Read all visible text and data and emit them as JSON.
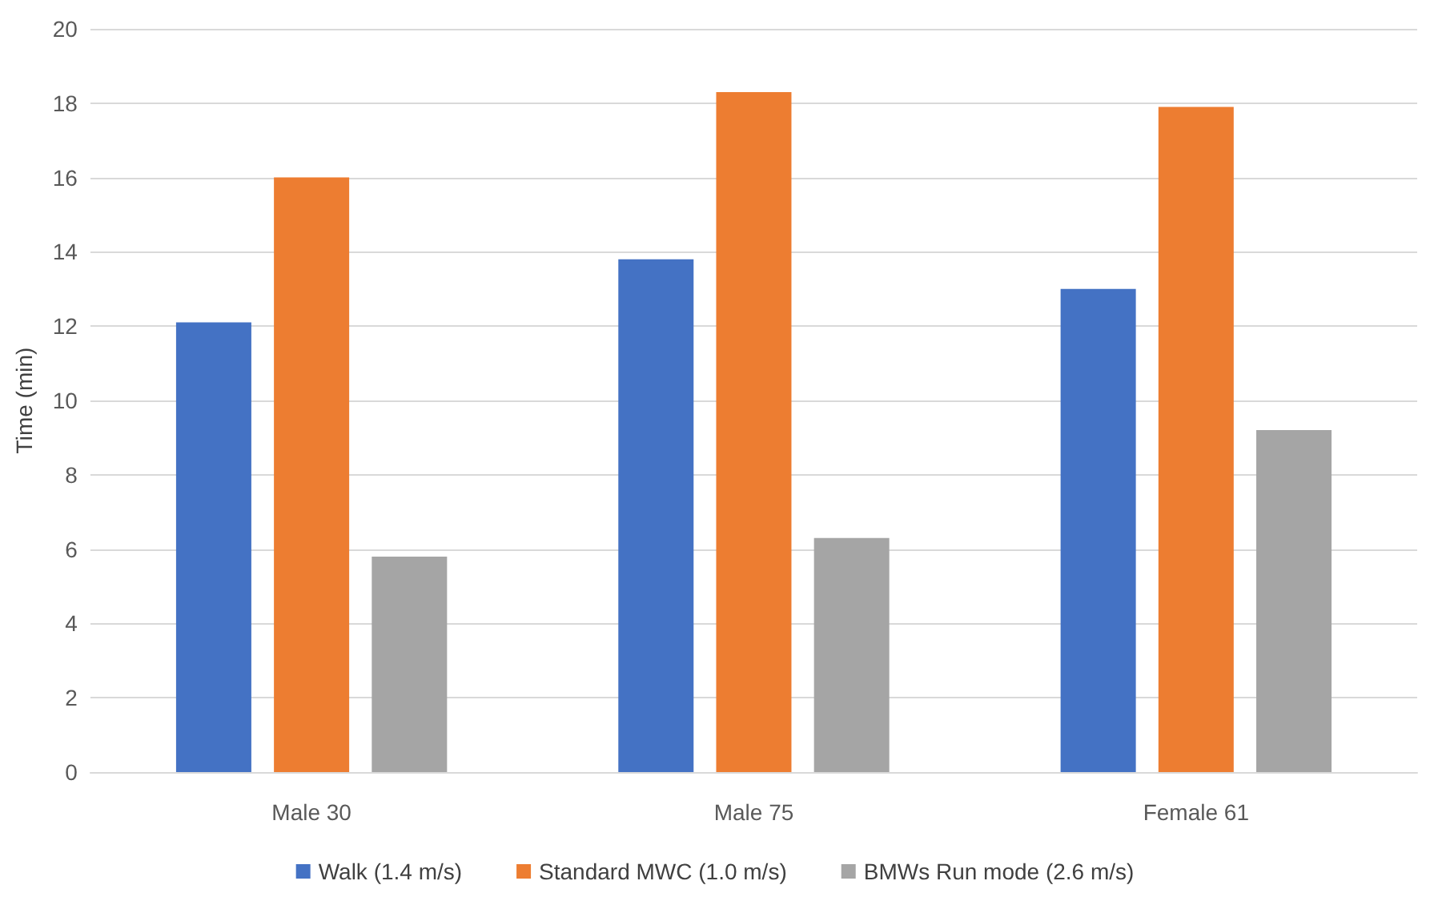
{
  "chart_data": {
    "type": "bar",
    "ylabel": "Time (min)",
    "categories": [
      "Male 30",
      "Male 75",
      "Female 61"
    ],
    "series": [
      {
        "name": "Walk (1.4 m/s)",
        "color": "#4472c4",
        "values": [
          12.1,
          13.8,
          13.0
        ]
      },
      {
        "name": "Standard MWC (1.0 m/s)",
        "color": "#ed7d31",
        "values": [
          16.0,
          18.3,
          17.9
        ]
      },
      {
        "name": "BMWs Run mode (2.6 m/s)",
        "color": "#a5a5a5",
        "values": [
          5.8,
          6.3,
          9.2
        ]
      }
    ],
    "ylim": [
      0,
      20
    ],
    "yticks": [
      0,
      2,
      4,
      6,
      8,
      10,
      12,
      14,
      16,
      18,
      20
    ],
    "grid": "y",
    "legend": "bottom"
  }
}
